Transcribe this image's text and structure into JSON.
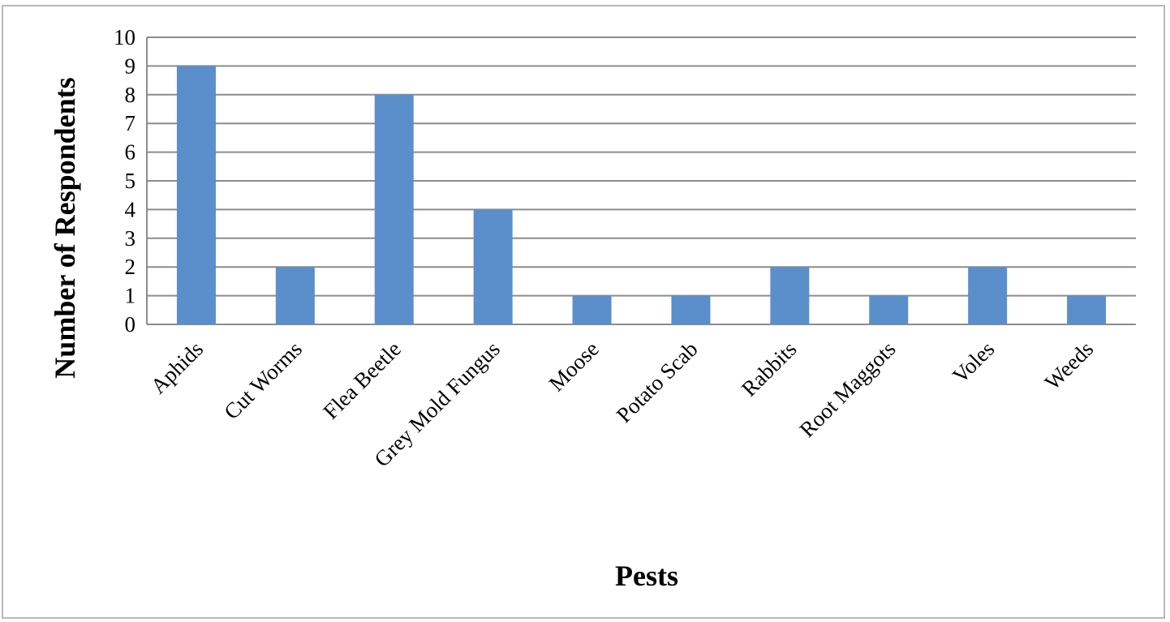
{
  "chart_data": {
    "type": "bar",
    "title": "",
    "xlabel": "Pests",
    "ylabel": "Number of Respondents",
    "categories": [
      "Aphids",
      "Cut Worms",
      "Flea Beetle",
      "Grey Mold Fungus",
      "Moose",
      "Potato Scab",
      "Rabbits",
      "Root Maggots",
      "Voles",
      "Weeds"
    ],
    "values": [
      9,
      2,
      8,
      4,
      1,
      1,
      2,
      1,
      2,
      1
    ],
    "ylim": [
      0,
      10
    ],
    "yticks": [
      "0",
      "1",
      "2",
      "3",
      "4",
      "5",
      "6",
      "7",
      "8",
      "9",
      "10"
    ],
    "grid": true,
    "legend": "none",
    "colors": {
      "bar": "#5b8fcb",
      "grid": "#8c8c8c",
      "axis": "#8c8c8c"
    }
  }
}
